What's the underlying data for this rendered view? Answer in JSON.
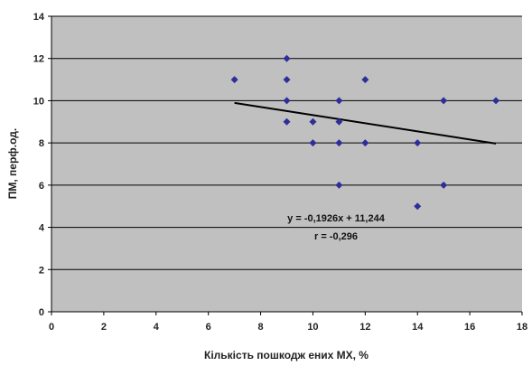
{
  "chart_data": {
    "type": "scatter",
    "xlabel": "Кількість пошкодж ених МХ, %",
    "ylabel": "ПМ, перф.од.",
    "xlim": [
      0,
      18
    ],
    "ylim": [
      0,
      14
    ],
    "x_ticks": [
      "0",
      "2",
      "4",
      "6",
      "8",
      "10",
      "12",
      "14",
      "16",
      "18"
    ],
    "y_ticks": [
      "0",
      "2",
      "4",
      "6",
      "8",
      "10",
      "12",
      "14"
    ],
    "grid": "horizontal",
    "plot_background": "#c0c0c0",
    "marker_color": "#2e2e9a",
    "line_color": "#000000",
    "series": [
      {
        "x": [
          7,
          9,
          9,
          9,
          9,
          10,
          10,
          11,
          11,
          11,
          11,
          12,
          12,
          14,
          14,
          15,
          15,
          17
        ],
        "y": [
          11,
          12,
          11,
          10,
          9,
          9,
          8,
          10,
          9,
          8,
          6,
          11,
          8,
          8,
          5,
          10,
          6,
          10
        ]
      }
    ],
    "trendline": {
      "slope": -0.1926,
      "intercept": 11.244,
      "x_range": [
        7,
        17
      ]
    },
    "annotations": [
      "y = -0,1926x + 11,244",
      "r = -0,296"
    ]
  }
}
